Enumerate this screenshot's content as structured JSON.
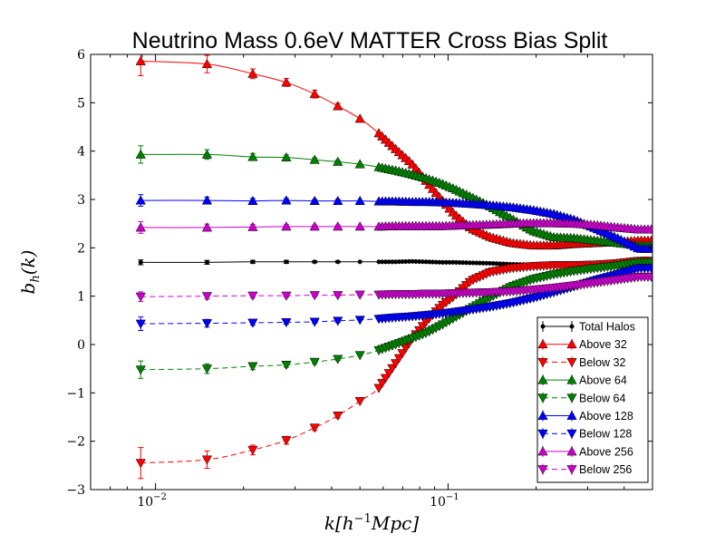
{
  "chart_data": {
    "type": "line",
    "title": "Neutrino Mass 0.6eV MATTER Cross Bias Split",
    "xlabel": "k[h^{-1}Mpc]",
    "ylabel": "b_h(k)",
    "xscale": "log",
    "xlim": [
      0.006,
      0.5
    ],
    "ylim": [
      -3,
      6
    ],
    "grid": false,
    "legend_position": "lower-right",
    "x_ticks": [
      {
        "value": 0.01,
        "base": "10",
        "exp": "−2"
      },
      {
        "value": 0.1,
        "base": "10",
        "exp": "−1"
      }
    ],
    "y_ticks": [
      {
        "value": -3,
        "label": "−3"
      },
      {
        "value": -2,
        "label": "−2"
      },
      {
        "value": -1,
        "label": "−1"
      },
      {
        "value": 0,
        "label": "0"
      },
      {
        "value": 1,
        "label": "1"
      },
      {
        "value": 2,
        "label": "2"
      },
      {
        "value": 3,
        "label": "3"
      },
      {
        "value": 4,
        "label": "4"
      },
      {
        "value": 5,
        "label": "5"
      },
      {
        "value": 6,
        "label": "6"
      }
    ],
    "series": [
      {
        "name": "Total Halos",
        "color": "#000000",
        "marker": "circle",
        "line": "solid",
        "x": [
          0.0089,
          0.015,
          0.0215,
          0.028,
          0.035,
          0.042,
          0.05,
          0.058,
          0.066,
          0.075,
          0.085,
          0.095,
          0.105,
          0.12,
          0.14,
          0.165,
          0.195,
          0.23,
          0.27,
          0.32,
          0.38,
          0.45
        ],
        "y": [
          1.7,
          1.7,
          1.71,
          1.71,
          1.71,
          1.71,
          1.71,
          1.71,
          1.71,
          1.72,
          1.71,
          1.7,
          1.7,
          1.69,
          1.68,
          1.66,
          1.65,
          1.64,
          1.63,
          1.62,
          1.61,
          1.6
        ],
        "err": [
          0.05,
          0.04,
          0.03,
          0.03,
          0.02,
          0.02,
          0.02,
          0.02,
          0.01,
          0.01,
          0.01,
          0.01,
          0.01,
          0.01,
          0.01,
          0.01,
          0.01,
          0.01,
          0.01,
          0.01,
          0.01,
          0.01
        ]
      },
      {
        "name": "Above 32",
        "color": "#ff0000",
        "marker": "triangle-up",
        "line": "solid",
        "x": [
          0.0089,
          0.015,
          0.0215,
          0.028,
          0.035,
          0.042,
          0.05,
          0.058,
          0.066,
          0.075,
          0.085,
          0.095,
          0.105,
          0.12,
          0.14,
          0.165,
          0.195,
          0.23,
          0.27,
          0.32,
          0.38,
          0.45
        ],
        "y": [
          5.86,
          5.8,
          5.6,
          5.42,
          5.18,
          4.93,
          4.67,
          4.37,
          4.05,
          3.75,
          3.35,
          3.0,
          2.7,
          2.4,
          2.22,
          2.1,
          2.05,
          2.05,
          2.08,
          2.1,
          2.12,
          2.15
        ],
        "err": [
          0.3,
          0.18,
          0.1,
          0.08,
          0.08,
          0.06,
          0.05,
          0.05,
          0.04,
          0.04,
          0.03,
          0.03,
          0.03,
          0.02,
          0.02,
          0.02,
          0.02,
          0.02,
          0.02,
          0.02,
          0.02,
          0.02
        ]
      },
      {
        "name": "Below 32",
        "color": "#ff0000",
        "marker": "triangle-down",
        "line": "dashed",
        "x": [
          0.0089,
          0.015,
          0.0215,
          0.028,
          0.035,
          0.042,
          0.05,
          0.058,
          0.066,
          0.075,
          0.085,
          0.095,
          0.105,
          0.12,
          0.14,
          0.165,
          0.195,
          0.23,
          0.27,
          0.32,
          0.38,
          0.45
        ],
        "y": [
          -2.45,
          -2.38,
          -2.18,
          -1.98,
          -1.72,
          -1.47,
          -1.17,
          -0.9,
          -0.4,
          0.1,
          0.5,
          0.8,
          1.0,
          1.32,
          1.5,
          1.58,
          1.62,
          1.64,
          1.64,
          1.65,
          1.68,
          1.73
        ],
        "err": [
          0.32,
          0.18,
          0.1,
          0.08,
          0.06,
          0.05,
          0.04,
          0.04,
          0.03,
          0.03,
          0.02,
          0.02,
          0.02,
          0.02,
          0.02,
          0.02,
          0.02,
          0.02,
          0.02,
          0.02,
          0.02,
          0.02
        ]
      },
      {
        "name": "Above 64",
        "color": "#008000",
        "marker": "triangle-up",
        "line": "solid",
        "x": [
          0.0089,
          0.015,
          0.0215,
          0.028,
          0.035,
          0.042,
          0.05,
          0.058,
          0.066,
          0.075,
          0.085,
          0.095,
          0.105,
          0.12,
          0.14,
          0.165,
          0.195,
          0.23,
          0.27,
          0.32,
          0.38,
          0.45
        ],
        "y": [
          3.93,
          3.93,
          3.88,
          3.87,
          3.82,
          3.78,
          3.73,
          3.67,
          3.6,
          3.52,
          3.43,
          3.33,
          3.22,
          3.05,
          2.85,
          2.6,
          2.35,
          2.22,
          2.2,
          2.15,
          2.1,
          2.05
        ],
        "err": [
          0.18,
          0.1,
          0.07,
          0.05,
          0.04,
          0.03,
          0.03,
          0.03,
          0.02,
          0.02,
          0.02,
          0.02,
          0.02,
          0.02,
          0.02,
          0.02,
          0.02,
          0.02,
          0.02,
          0.02,
          0.02,
          0.02
        ]
      },
      {
        "name": "Below 64",
        "color": "#008000",
        "marker": "triangle-down",
        "line": "dashed",
        "x": [
          0.0089,
          0.015,
          0.0215,
          0.028,
          0.035,
          0.042,
          0.05,
          0.058,
          0.066,
          0.075,
          0.085,
          0.095,
          0.105,
          0.12,
          0.14,
          0.165,
          0.195,
          0.23,
          0.27,
          0.32,
          0.38,
          0.45
        ],
        "y": [
          -0.52,
          -0.5,
          -0.45,
          -0.42,
          -0.36,
          -0.3,
          -0.22,
          -0.12,
          0.0,
          0.12,
          0.25,
          0.4,
          0.55,
          0.75,
          0.98,
          1.2,
          1.35,
          1.45,
          1.52,
          1.58,
          1.63,
          1.7
        ],
        "err": [
          0.18,
          0.1,
          0.07,
          0.05,
          0.04,
          0.03,
          0.03,
          0.03,
          0.02,
          0.02,
          0.02,
          0.02,
          0.02,
          0.02,
          0.02,
          0.02,
          0.02,
          0.02,
          0.02,
          0.02,
          0.02,
          0.02
        ]
      },
      {
        "name": "Above 128",
        "color": "#0000ff",
        "marker": "triangle-up",
        "line": "solid",
        "x": [
          0.0089,
          0.015,
          0.0215,
          0.028,
          0.035,
          0.042,
          0.05,
          0.058,
          0.066,
          0.075,
          0.085,
          0.095,
          0.105,
          0.12,
          0.14,
          0.165,
          0.195,
          0.23,
          0.27,
          0.32,
          0.38,
          0.45
        ],
        "y": [
          2.98,
          2.98,
          2.97,
          2.98,
          2.97,
          2.97,
          2.97,
          2.96,
          2.96,
          2.95,
          2.95,
          2.94,
          2.93,
          2.91,
          2.88,
          2.84,
          2.78,
          2.7,
          2.58,
          2.4,
          2.2,
          1.98
        ],
        "err": [
          0.12,
          0.07,
          0.05,
          0.04,
          0.03,
          0.03,
          0.02,
          0.02,
          0.02,
          0.02,
          0.02,
          0.02,
          0.02,
          0.02,
          0.02,
          0.02,
          0.02,
          0.02,
          0.02,
          0.02,
          0.02,
          0.02
        ]
      },
      {
        "name": "Below 128",
        "color": "#0000ff",
        "marker": "triangle-down",
        "line": "dashed",
        "x": [
          0.0089,
          0.015,
          0.0215,
          0.028,
          0.035,
          0.042,
          0.05,
          0.058,
          0.066,
          0.075,
          0.085,
          0.095,
          0.105,
          0.12,
          0.14,
          0.165,
          0.195,
          0.23,
          0.27,
          0.32,
          0.38,
          0.45
        ],
        "y": [
          0.43,
          0.44,
          0.45,
          0.46,
          0.47,
          0.49,
          0.51,
          0.53,
          0.56,
          0.58,
          0.61,
          0.64,
          0.67,
          0.72,
          0.78,
          0.86,
          0.96,
          1.08,
          1.2,
          1.33,
          1.45,
          1.58
        ],
        "err": [
          0.14,
          0.08,
          0.05,
          0.04,
          0.03,
          0.03,
          0.02,
          0.02,
          0.02,
          0.02,
          0.02,
          0.02,
          0.02,
          0.02,
          0.02,
          0.02,
          0.02,
          0.02,
          0.02,
          0.02,
          0.02,
          0.02
        ]
      },
      {
        "name": "Above 256",
        "color": "#cc00cc",
        "marker": "triangle-up",
        "line": "solid",
        "x": [
          0.0089,
          0.015,
          0.0215,
          0.028,
          0.035,
          0.042,
          0.05,
          0.058,
          0.066,
          0.075,
          0.085,
          0.095,
          0.105,
          0.12,
          0.14,
          0.165,
          0.195,
          0.23,
          0.27,
          0.32,
          0.38,
          0.45
        ],
        "y": [
          2.42,
          2.42,
          2.43,
          2.44,
          2.44,
          2.44,
          2.44,
          2.44,
          2.45,
          2.45,
          2.45,
          2.45,
          2.46,
          2.47,
          2.48,
          2.5,
          2.51,
          2.51,
          2.5,
          2.47,
          2.42,
          2.38
        ],
        "err": [
          0.12,
          0.07,
          0.05,
          0.04,
          0.03,
          0.03,
          0.02,
          0.02,
          0.02,
          0.02,
          0.02,
          0.02,
          0.02,
          0.02,
          0.02,
          0.02,
          0.02,
          0.02,
          0.02,
          0.02,
          0.02,
          0.02
        ]
      },
      {
        "name": "Below 256",
        "color": "#cc00cc",
        "marker": "triangle-down",
        "line": "dashed",
        "x": [
          0.0089,
          0.015,
          0.0215,
          0.028,
          0.035,
          0.042,
          0.05,
          0.058,
          0.066,
          0.075,
          0.085,
          0.095,
          0.105,
          0.12,
          0.14,
          0.165,
          0.195,
          0.23,
          0.27,
          0.32,
          0.38,
          0.45
        ],
        "y": [
          0.99,
          1.0,
          1.01,
          1.01,
          1.02,
          1.02,
          1.03,
          1.03,
          1.04,
          1.04,
          1.05,
          1.05,
          1.06,
          1.07,
          1.08,
          1.1,
          1.13,
          1.17,
          1.22,
          1.28,
          1.34,
          1.4
        ],
        "err": [
          0.1,
          0.06,
          0.04,
          0.03,
          0.03,
          0.02,
          0.02,
          0.02,
          0.02,
          0.02,
          0.02,
          0.02,
          0.02,
          0.02,
          0.02,
          0.02,
          0.02,
          0.02,
          0.02,
          0.02,
          0.02,
          0.02
        ]
      }
    ]
  }
}
